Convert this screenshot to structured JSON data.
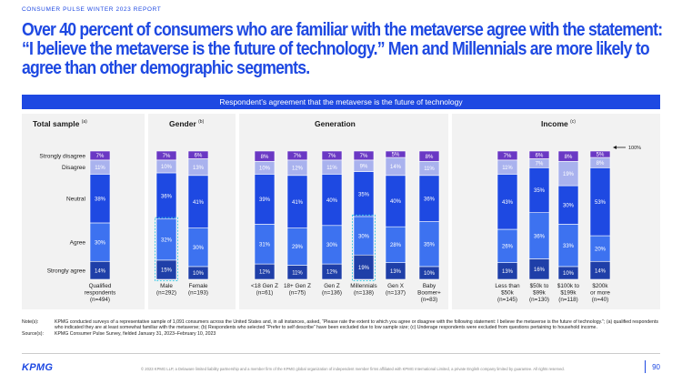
{
  "header": {
    "kicker": "CONSUMER PULSE WINTER 2023 REPORT",
    "headline_lines": [
      "Over 40 percent of consumers who are familiar with the metaverse agree with the statement:",
      "“I believe the metaverse is the future of technology.” Men and Millennials are more likely to",
      "agree than other demographic segments."
    ]
  },
  "banner": "Respondent’s agreement that the metaverse is the future of technology",
  "panels": {
    "total": {
      "title": "Total sample",
      "note": "(a)"
    },
    "gender": {
      "title": "Gender",
      "note": "(b)"
    },
    "generation": {
      "title": "Generation",
      "note": ""
    },
    "income": {
      "title": "Income",
      "note": "(c)"
    }
  },
  "annotation_100": "100%",
  "chart_data": {
    "type": "bar",
    "stacked": true,
    "unit": "%",
    "levels": [
      "Strongly agree",
      "Agree",
      "Neutral",
      "Disagree",
      "Strongly disagree"
    ],
    "colors": {
      "Strongly agree": "#1f3fa8",
      "Agree": "#3d72f0",
      "Neutral": "#1e49e2",
      "Disagree": "#a9b2ee",
      "Strongly disagree": "#6a38c4"
    },
    "label_colors": {
      "Strongly agree": "#ffffff",
      "Agree": "#ffffff",
      "Neutral": "#ffffff",
      "Disagree": "#ffffff",
      "Strongly disagree": "#ffffff"
    },
    "highlighted": [
      "Male (n=292)",
      "Millennials (n=138)"
    ],
    "groups": [
      {
        "panel": "total",
        "bars": [
          {
            "label": [
              "Qualified",
              "respondents",
              "(n=494)"
            ],
            "id": "total",
            "values": [
              14,
              30,
              38,
              11,
              7
            ]
          }
        ]
      },
      {
        "panel": "gender",
        "bars": [
          {
            "label": [
              "Male",
              "(n=292)"
            ],
            "id": "male",
            "values": [
              15,
              32,
              36,
              10,
              7
            ]
          },
          {
            "label": [
              "Female",
              "(n=193)"
            ],
            "id": "female",
            "values": [
              10,
              30,
              41,
              13,
              6
            ]
          }
        ]
      },
      {
        "panel": "generation",
        "bars": [
          {
            "label": [
              "<18 Gen Z",
              "(n=61)"
            ],
            "id": "gen-z-u18",
            "values": [
              12,
              31,
              39,
              10,
              8
            ]
          },
          {
            "label": [
              "18+ Gen Z",
              "(n=75)"
            ],
            "id": "gen-z-18",
            "values": [
              11,
              29,
              41,
              12,
              7
            ]
          },
          {
            "label": [
              "Gen Z",
              "(n=136)"
            ],
            "id": "gen-z",
            "values": [
              12,
              30,
              40,
              11,
              7
            ]
          },
          {
            "label": [
              "Millennials",
              "(n=138)"
            ],
            "id": "millennials",
            "values": [
              19,
              30,
              35,
              9,
              7
            ]
          },
          {
            "label": [
              "Gen X",
              "(n=137)"
            ],
            "id": "gen-x",
            "values": [
              13,
              28,
              40,
              14,
              5
            ]
          },
          {
            "label": [
              "Baby",
              "Boomer+",
              "(n=83)"
            ],
            "id": "boomers",
            "values": [
              10,
              35,
              36,
              11,
              8
            ]
          }
        ]
      },
      {
        "panel": "income",
        "bars": [
          {
            "label": [
              "Less than",
              "$50k",
              "(n=145)"
            ],
            "id": "inc-lt50",
            "values": [
              13,
              26,
              43,
              11,
              7
            ]
          },
          {
            "label": [
              "$50k to",
              "$99k",
              "(n=130)"
            ],
            "id": "inc-50-99",
            "values": [
              16,
              36,
              35,
              7,
              6
            ]
          },
          {
            "label": [
              "$100k to",
              "$199k",
              "(n=118)"
            ],
            "id": "inc-100-199",
            "values": [
              10,
              33,
              30,
              19,
              8
            ]
          },
          {
            "label": [
              "$200k",
              "or more",
              "(n=40)"
            ],
            "id": "inc-200",
            "values": [
              14,
              20,
              53,
              8,
              5
            ]
          }
        ]
      }
    ]
  },
  "notes": {
    "notes_label": "Note(s):",
    "notes_text": "KPMG conducted surveys of a representative sample of 1,091 consumers across the United States and, in all instances, asked, “Please rate the extent to which you agree or disagree with the following statement: I believe the metaverse is the future of technology.”; (a) qualified respondents who indicated they are at least somewhat familiar with the metaverse; (b) Respondents who selected “Prefer to self describe” have been excluded due to low sample size; (c) Underage respondents were excluded from questions pertaining to household income.",
    "source_label": "Source(s):",
    "source_text": "KPMG Consumer Pulse Survey, fielded January 31, 2023–February 10, 2023"
  },
  "footer": {
    "logo": "KPMG",
    "copyright": "© 2023 KPMG LLP, a Delaware limited liability partnership and a member firm of the KPMG global organization of independent member firms affiliated with KPMG International Limited, a private English company limited by guarantee. All rights reserved.",
    "page": "90"
  }
}
